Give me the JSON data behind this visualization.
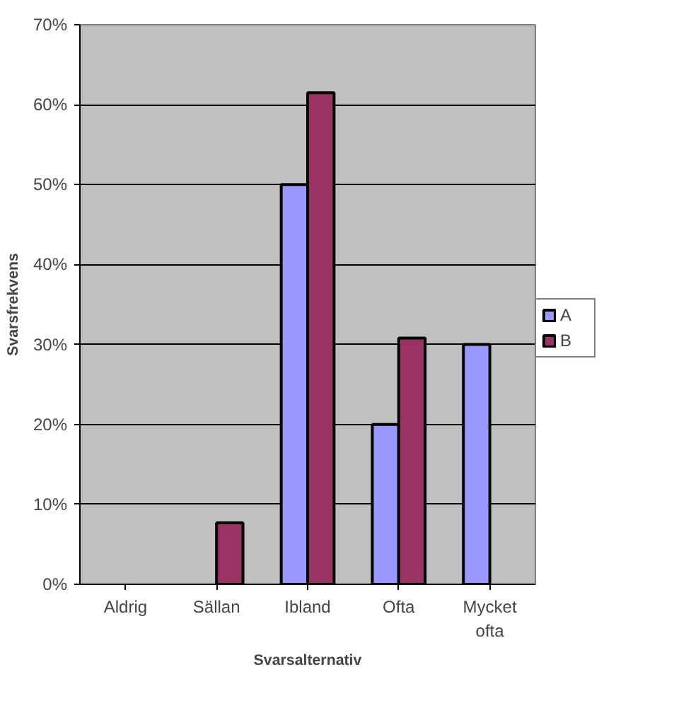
{
  "chart_data": {
    "type": "bar",
    "xlabel": "Svarsalternativ",
    "ylabel": "Svarsfrekvens",
    "categories": [
      "Aldrig",
      "Sällan",
      "Ibland",
      "Ofta",
      "Mycket ofta"
    ],
    "series": [
      {
        "name": "A",
        "color": "#9999ff",
        "values": [
          null,
          null,
          50,
          20,
          30
        ]
      },
      {
        "name": "B",
        "color": "#993366",
        "values": [
          null,
          7.7,
          61.5,
          30.8,
          null
        ]
      }
    ],
    "ylim": [
      0,
      70
    ],
    "yticks": [
      {
        "value": 0,
        "label": "0%"
      },
      {
        "value": 10,
        "label": "10%"
      },
      {
        "value": 20,
        "label": "20%"
      },
      {
        "value": 30,
        "label": "30%"
      },
      {
        "value": 40,
        "label": "40%"
      },
      {
        "value": 50,
        "label": "50%"
      },
      {
        "value": 60,
        "label": "60%"
      },
      {
        "value": 70,
        "label": "70%"
      }
    ],
    "grid": "y",
    "legend": "right"
  }
}
